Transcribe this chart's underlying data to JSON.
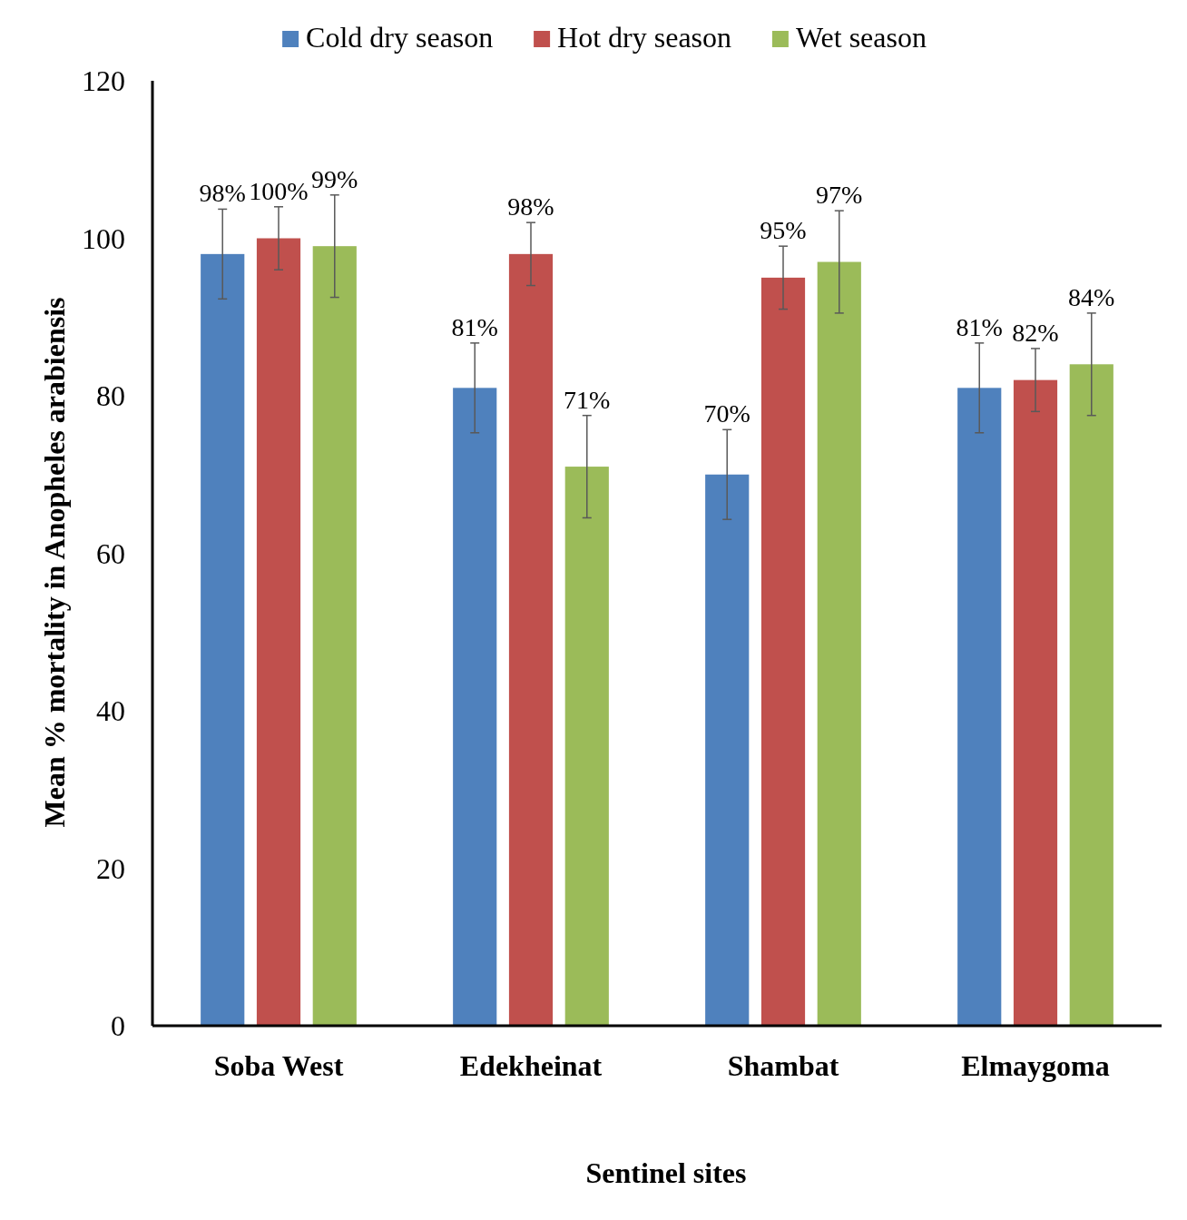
{
  "chart_data": {
    "type": "bar",
    "xlabel": "Sentinel sites",
    "ylabel": "Mean % mortality in Anopheles arabiensis",
    "categories": [
      "Soba West",
      "Edekheinat",
      "Shambat",
      "Elmaygoma"
    ],
    "series": [
      {
        "name": "Cold dry season",
        "color": "#4f81bd",
        "values": [
          98,
          81,
          70,
          81
        ],
        "errors": [
          5.7,
          5.7,
          5.7,
          5.7
        ],
        "value_labels": [
          "98%",
          "81%",
          "70%",
          "81%"
        ]
      },
      {
        "name": "Hot dry season",
        "color": "#c0504d",
        "values": [
          100,
          98,
          95,
          82
        ],
        "errors": [
          4,
          4,
          4,
          4
        ],
        "value_labels": [
          "100%",
          "98%",
          "95%",
          "82%"
        ]
      },
      {
        "name": "Wet season",
        "color": "#9bbb59",
        "values": [
          99,
          71,
          97,
          84
        ],
        "errors": [
          6.5,
          6.5,
          6.5,
          6.5
        ],
        "value_labels": [
          "99%",
          "71%",
          "97%",
          "84%"
        ]
      }
    ],
    "ylim": [
      0,
      120
    ],
    "yticks": [
      0,
      20,
      40,
      60,
      80,
      100,
      120
    ],
    "grid": false,
    "legend": "top"
  }
}
